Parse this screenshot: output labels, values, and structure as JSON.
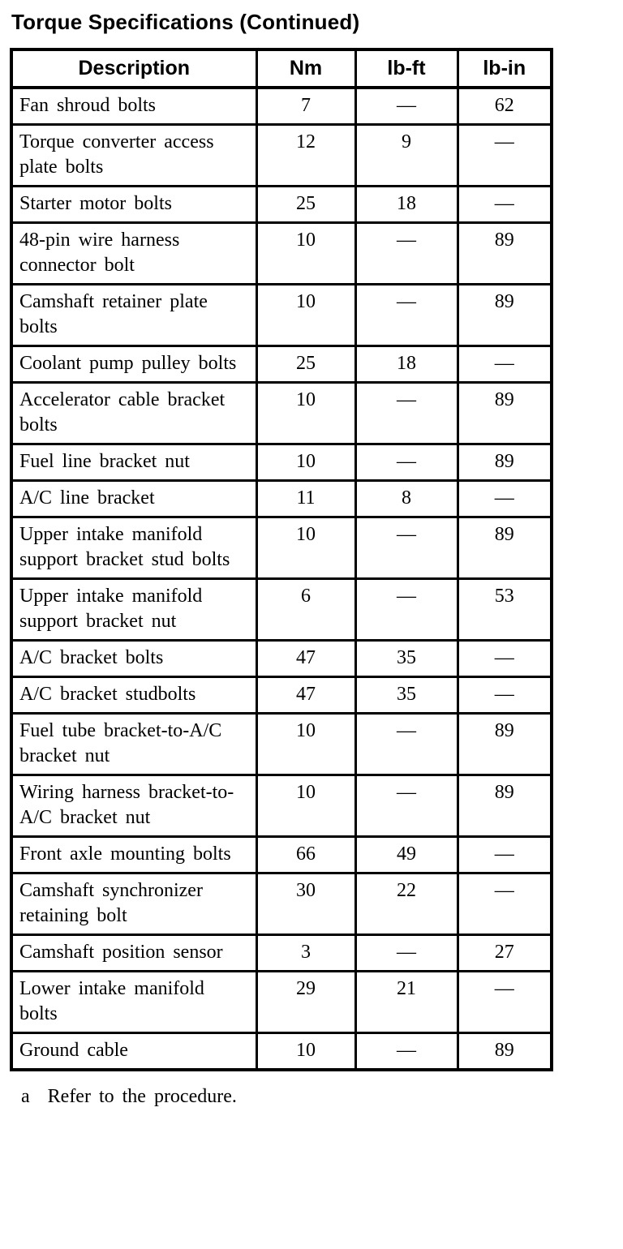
{
  "page": {
    "title": "Torque Specifications (Continued)",
    "footnote": {
      "marker": "a",
      "text": "Refer to the procedure."
    }
  },
  "colors": {
    "text": "#000000",
    "background": "#ffffff",
    "border": "#000000"
  },
  "table": {
    "headers": [
      "Description",
      "Nm",
      "lb-ft",
      "lb-in"
    ],
    "rows": [
      {
        "description": "Fan shroud bolts",
        "nm": "7",
        "lb_ft": "—",
        "lb_in": "62"
      },
      {
        "description": "Torque converter access plate bolts",
        "nm": "12",
        "lb_ft": "9",
        "lb_in": "—"
      },
      {
        "description": "Starter motor bolts",
        "nm": "25",
        "lb_ft": "18",
        "lb_in": "—"
      },
      {
        "description": "48-pin wire harness connector bolt",
        "nm": "10",
        "lb_ft": "—",
        "lb_in": "89"
      },
      {
        "description": "Camshaft retainer plate bolts",
        "nm": "10",
        "lb_ft": "—",
        "lb_in": "89"
      },
      {
        "description": "Coolant pump pulley bolts",
        "nm": "25",
        "lb_ft": "18",
        "lb_in": "—"
      },
      {
        "description": "Accelerator cable bracket bolts",
        "nm": "10",
        "lb_ft": "—",
        "lb_in": "89"
      },
      {
        "description": "Fuel line bracket nut",
        "nm": "10",
        "lb_ft": "—",
        "lb_in": "89"
      },
      {
        "description": "A/C line bracket",
        "nm": "11",
        "lb_ft": "8",
        "lb_in": "—"
      },
      {
        "description": "Upper intake manifold support bracket stud bolts",
        "nm": "10",
        "lb_ft": "—",
        "lb_in": "89"
      },
      {
        "description": "Upper intake manifold support bracket nut",
        "nm": "6",
        "lb_ft": "—",
        "lb_in": "53"
      },
      {
        "description": "A/C bracket bolts",
        "nm": "47",
        "lb_ft": "35",
        "lb_in": "—"
      },
      {
        "description": "A/C bracket studbolts",
        "nm": "47",
        "lb_ft": "35",
        "lb_in": "—"
      },
      {
        "description": "Fuel tube bracket-to-A/C bracket nut",
        "nm": "10",
        "lb_ft": "—",
        "lb_in": "89"
      },
      {
        "description": "Wiring harness bracket-to-A/C bracket nut",
        "nm": "10",
        "lb_ft": "—",
        "lb_in": "89"
      },
      {
        "description": "Front axle mounting bolts",
        "nm": "66",
        "lb_ft": "49",
        "lb_in": "—"
      },
      {
        "description": "Camshaft synchronizer retaining bolt",
        "nm": "30",
        "lb_ft": "22",
        "lb_in": "—"
      },
      {
        "description": "Camshaft position sensor",
        "nm": "3",
        "lb_ft": "—",
        "lb_in": "27"
      },
      {
        "description": "Lower intake manifold bolts",
        "nm": "29",
        "lb_ft": "21",
        "lb_in": "—"
      },
      {
        "description": "Ground cable",
        "nm": "10",
        "lb_ft": "—",
        "lb_in": "89"
      }
    ]
  }
}
